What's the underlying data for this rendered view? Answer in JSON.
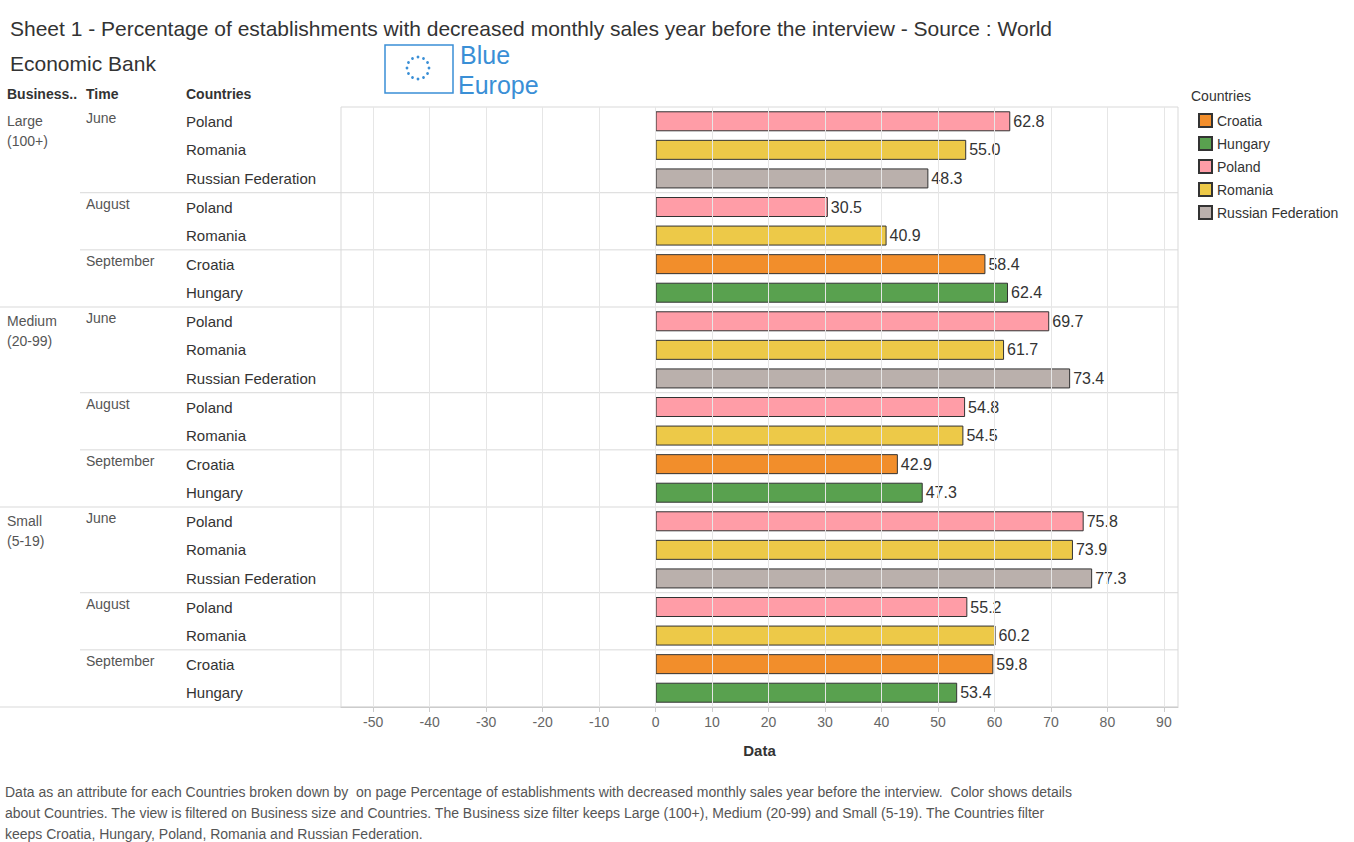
{
  "chart_data": {
    "type": "bar",
    "orientation": "horizontal",
    "title": "Sheet 1 - Percentage of establishments with decreased monthly sales year before the interview - Source : World Economic Bank",
    "logo": "Blue Europe",
    "row_headers": [
      "Business..",
      "Time",
      "Countries"
    ],
    "business_size": [
      "Large (100+)",
      "Large (100+)",
      "Large (100+)",
      "Large (100+)",
      "Large (100+)",
      "Large (100+)",
      "Large (100+)",
      "Medium (20-99)",
      "Medium (20-99)",
      "Medium (20-99)",
      "Medium (20-99)",
      "Medium (20-99)",
      "Medium (20-99)",
      "Medium (20-99)",
      "Small (5-19)",
      "Small (5-19)",
      "Small (5-19)",
      "Small (5-19)",
      "Small (5-19)",
      "Small (5-19)",
      "Small (5-19)"
    ],
    "time": [
      "June",
      "June",
      "June",
      "August",
      "August",
      "September",
      "September",
      "June",
      "June",
      "June",
      "August",
      "August",
      "September",
      "September",
      "June",
      "June",
      "June",
      "August",
      "August",
      "September",
      "September"
    ],
    "categories": [
      "Poland",
      "Romania",
      "Russian Federation",
      "Poland",
      "Romania",
      "Croatia",
      "Hungary",
      "Poland",
      "Romania",
      "Russian Federation",
      "Poland",
      "Romania",
      "Croatia",
      "Hungary",
      "Poland",
      "Romania",
      "Russian Federation",
      "Poland",
      "Romania",
      "Croatia",
      "Hungary"
    ],
    "series": [
      {
        "name": "Croatia",
        "color": "#f28e2b",
        "values": [
          null,
          null,
          null,
          null,
          null,
          58.4,
          null,
          null,
          null,
          null,
          null,
          null,
          42.9,
          null,
          null,
          null,
          null,
          null,
          null,
          59.8,
          null
        ],
        "value_labels": [
          null,
          null,
          null,
          null,
          null,
          "58.4",
          null,
          null,
          null,
          null,
          null,
          null,
          "42.9",
          null,
          null,
          null,
          null,
          null,
          null,
          "59.8",
          null
        ]
      },
      {
        "name": "Hungary",
        "color": "#59a14f",
        "values": [
          null,
          null,
          null,
          null,
          null,
          null,
          62.4,
          null,
          null,
          null,
          null,
          null,
          null,
          47.3,
          null,
          null,
          null,
          null,
          null,
          null,
          53.4
        ],
        "value_labels": [
          null,
          null,
          null,
          null,
          null,
          null,
          "62.4",
          null,
          null,
          null,
          null,
          null,
          null,
          "47.3",
          null,
          null,
          null,
          null,
          null,
          null,
          "53.4"
        ]
      },
      {
        "name": "Poland",
        "color": "#ff9da7",
        "values": [
          62.8,
          null,
          null,
          30.5,
          null,
          null,
          null,
          69.7,
          null,
          null,
          54.8,
          null,
          null,
          null,
          75.8,
          null,
          null,
          55.2,
          null,
          null,
          null
        ],
        "value_labels": [
          "62.8",
          null,
          null,
          "30.5",
          null,
          null,
          null,
          "69.7",
          null,
          null,
          "54.8",
          null,
          null,
          null,
          "75.8",
          null,
          null,
          "55.2",
          null,
          null,
          null
        ]
      },
      {
        "name": "Romania",
        "color": "#edc948",
        "values": [
          null,
          55.0,
          null,
          null,
          40.9,
          null,
          null,
          null,
          61.7,
          null,
          null,
          54.5,
          null,
          null,
          null,
          73.9,
          null,
          null,
          60.2,
          null,
          null
        ],
        "value_labels": [
          null,
          "55.0",
          null,
          null,
          "40.9",
          null,
          null,
          null,
          "61.7",
          null,
          null,
          "54.5",
          null,
          null,
          null,
          "73.9",
          null,
          null,
          "60.2",
          null,
          null
        ]
      },
      {
        "name": "Russian Federation",
        "color": "#bab0ac",
        "values": [
          null,
          null,
          48.3,
          null,
          null,
          null,
          null,
          null,
          null,
          73.4,
          null,
          null,
          null,
          null,
          null,
          null,
          77.3,
          null,
          null,
          null,
          null
        ],
        "value_labels": [
          null,
          null,
          "48.3",
          null,
          null,
          null,
          null,
          null,
          null,
          "73.4",
          null,
          null,
          null,
          null,
          null,
          null,
          "77.3",
          null,
          null,
          null,
          null
        ]
      }
    ],
    "x_label": "Data",
    "xlim": [
      -55.7,
      92.5
    ],
    "xticks": [
      -50,
      -40,
      -30,
      -20,
      -10,
      0,
      10,
      20,
      30,
      40,
      50,
      60,
      70,
      80,
      90
    ],
    "legend_title": "Countries",
    "legend": "right",
    "grid": true,
    "data_labels": true,
    "note": "Data as an attribute for each Countries broken down by  on page Percentage of establishments with decreased monthly sales year before the interview.  Color shows details about Countries. The view is filtered on Business size and Countries. The Business size filter keeps Large (100+), Medium (20-99) and Small (5-19). The Countries filter keeps Croatia, Hungary, Poland, Romania and Russian Federation."
  }
}
